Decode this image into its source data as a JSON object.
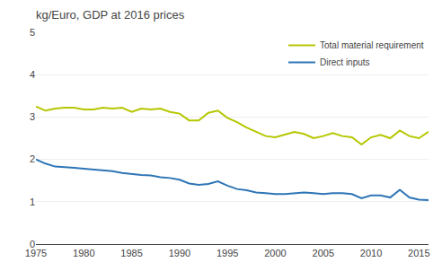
{
  "chart_data": {
    "type": "line",
    "title": "kg/Euro, GDP at 2016 prices",
    "x": [
      1975,
      1976,
      1977,
      1978,
      1979,
      1980,
      1981,
      1982,
      1983,
      1984,
      1985,
      1986,
      1987,
      1988,
      1989,
      1990,
      1991,
      1992,
      1993,
      1994,
      1995,
      1996,
      1997,
      1998,
      1999,
      2000,
      2001,
      2002,
      2003,
      2004,
      2005,
      2006,
      2007,
      2008,
      2009,
      2010,
      2011,
      2012,
      2013,
      2014,
      2015,
      2016
    ],
    "series": [
      {
        "name": "Total material requirement",
        "color": "#b5c700",
        "values": [
          3.25,
          3.15,
          3.2,
          3.22,
          3.22,
          3.18,
          3.18,
          3.22,
          3.2,
          3.22,
          3.12,
          3.2,
          3.18,
          3.2,
          3.12,
          3.08,
          2.92,
          2.92,
          3.1,
          3.15,
          2.98,
          2.88,
          2.75,
          2.65,
          2.55,
          2.52,
          2.58,
          2.65,
          2.6,
          2.5,
          2.55,
          2.62,
          2.55,
          2.52,
          2.35,
          2.52,
          2.58,
          2.5,
          2.68,
          2.55,
          2.5,
          2.65
        ]
      },
      {
        "name": "Direct inputs",
        "color": "#2e75b6",
        "values": [
          2.0,
          1.9,
          1.83,
          1.82,
          1.8,
          1.78,
          1.76,
          1.75,
          1.72,
          1.68,
          1.65,
          1.63,
          1.62,
          1.58,
          1.56,
          1.52,
          1.43,
          1.4,
          1.42,
          1.48,
          1.38,
          1.3,
          1.27,
          1.22,
          1.2,
          1.18,
          1.18,
          1.2,
          1.22,
          1.2,
          1.18,
          1.2,
          1.2,
          1.18,
          1.08,
          1.15,
          1.15,
          1.1,
          1.28,
          1.1,
          1.05,
          1.04
        ]
      }
    ],
    "xlim": [
      1975,
      2016
    ],
    "ylim": [
      0,
      5
    ],
    "xticks": [
      1975,
      1980,
      1985,
      1990,
      1995,
      2000,
      2005,
      2010,
      2015
    ],
    "yticks": [
      0,
      1,
      2,
      3,
      4,
      5
    ],
    "grid": "y",
    "legend": "upper right"
  }
}
